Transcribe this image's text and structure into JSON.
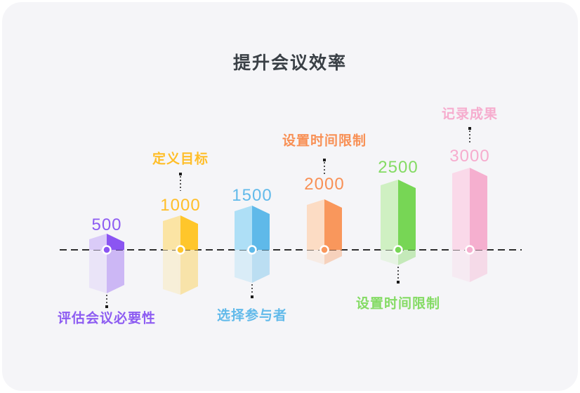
{
  "title": "提升会议效率",
  "colors": {
    "background": "#ffffff",
    "card": "#f5f5f8",
    "title_text": "#3a4046",
    "axis_line": "#2f2f2f",
    "connector": "#1b1b1b"
  },
  "chart_data": {
    "type": "bar",
    "title": "提升会议效率",
    "xlabel": "",
    "ylabel": "",
    "legend": "none",
    "gridlines": false,
    "baseline": {
      "style": "dashed",
      "value": 0
    },
    "categories": [
      "评估会议必要性",
      "定义目标",
      "选择参与者",
      "设置时间限制",
      "设置时间限制",
      "记录成果"
    ],
    "values": [
      500,
      1000,
      1500,
      2000,
      2500,
      3000
    ],
    "bars": [
      {
        "value": "500",
        "label": "评估会议必要性",
        "label_position": "below",
        "dark": "#8b55f2",
        "light": "#dacbf8",
        "text": "#8d5cf2"
      },
      {
        "value": "1000",
        "label": "定义目标",
        "label_position": "above",
        "dark": "#ffc62b",
        "light": "#fbe4a4",
        "text": "#ffbe28"
      },
      {
        "value": "1500",
        "label": "选择参与者",
        "label_position": "below",
        "dark": "#5fb9e9",
        "light": "#aedff6",
        "text": "#62baea"
      },
      {
        "value": "2000",
        "label": "设置时间限制",
        "label_position": "above",
        "dark": "#f9975c",
        "light": "#fcdcc4",
        "text": "#f89055"
      },
      {
        "value": "2500",
        "label": "设置时间限制",
        "label_position": "below",
        "dark": "#77d655",
        "light": "#cff0c2",
        "text": "#84db64"
      },
      {
        "value": "3000",
        "label": "记录成果",
        "label_position": "above",
        "dark": "#f5afcf",
        "light": "#fad9e9",
        "text": "#f6acce"
      }
    ]
  }
}
